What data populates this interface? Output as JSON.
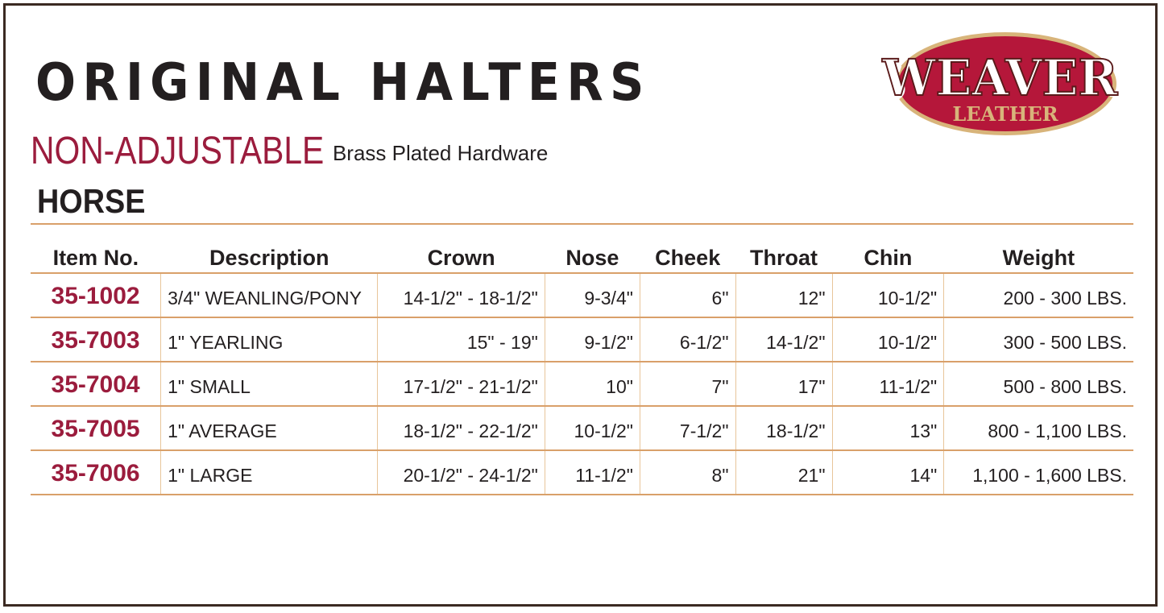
{
  "title": "ORIGINAL HALTERS",
  "subtitle": {
    "main": "NON-ADJUSTABLE",
    "detail": "Brass Plated Hardware"
  },
  "section": "HORSE",
  "logo": {
    "top": "WEAVER",
    "bottom": "LEATHER",
    "colors": {
      "oval": "#b5173a",
      "gold": "#d8b47a"
    }
  },
  "accent_color": "#9b1c3d",
  "table": {
    "headers": [
      "Item No.",
      "Description",
      "Crown",
      "Nose",
      "Cheek",
      "Throat",
      "Chin",
      "Weight"
    ],
    "rows": [
      [
        "35-1002",
        "3/4\" WEANLING/PONY",
        "14-1/2\" - 18-1/2\"",
        "9-3/4\"",
        "6\"",
        "12\"",
        "10-1/2\"",
        "200 - 300 LBS."
      ],
      [
        "35-7003",
        "1\" YEARLING",
        "15\" - 19\"",
        "9-1/2\"",
        "6-1/2\"",
        "14-1/2\"",
        "10-1/2\"",
        "300 - 500 LBS."
      ],
      [
        "35-7004",
        "1\" SMALL",
        "17-1/2\" - 21-1/2\"",
        "10\"",
        "7\"",
        "17\"",
        "11-1/2\"",
        "500 - 800 LBS."
      ],
      [
        "35-7005",
        "1\" AVERAGE",
        "18-1/2\" - 22-1/2\"",
        "10-1/2\"",
        "7-1/2\"",
        "18-1/2\"",
        "13\"",
        "800 - 1,100 LBS."
      ],
      [
        "35-7006",
        "1\" LARGE",
        "20-1/2\" - 24-1/2\"",
        "11-1/2\"",
        "8\"",
        "21\"",
        "14\"",
        "1,100 - 1,600 LBS."
      ]
    ]
  }
}
